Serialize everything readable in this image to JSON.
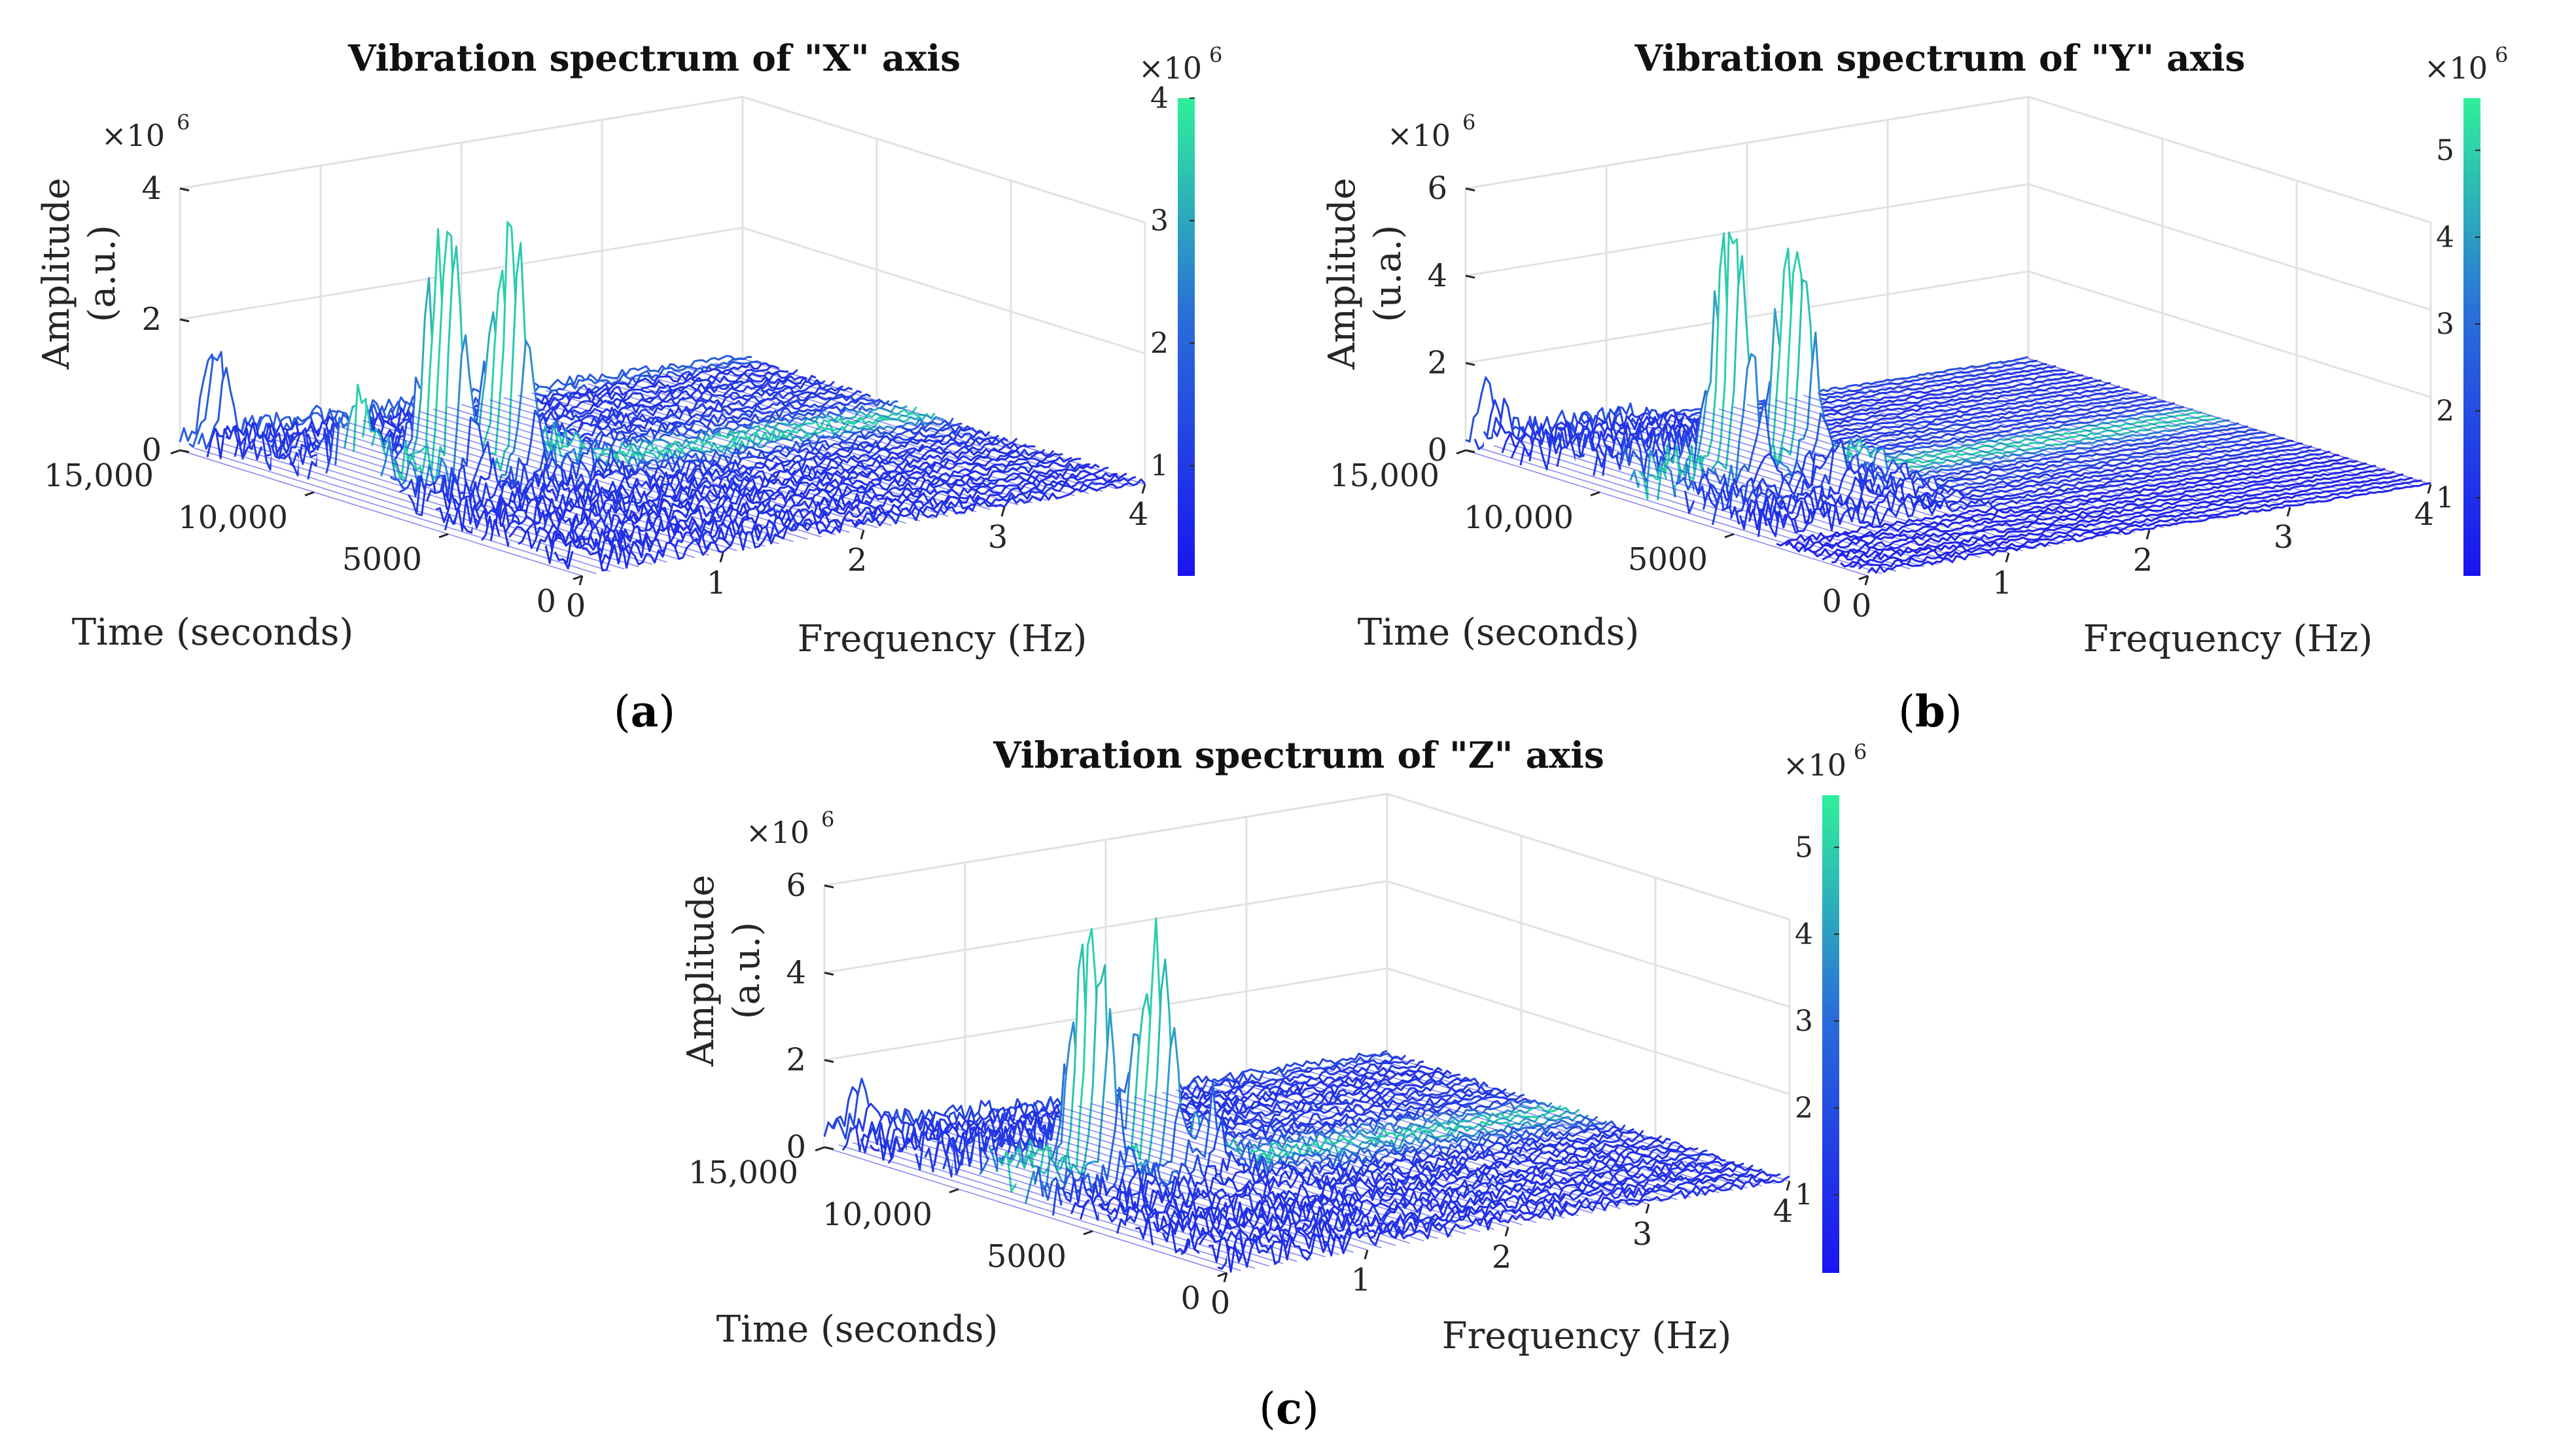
{
  "chart_data": [
    {
      "type": "surface3d",
      "id": "a",
      "title": "Vibration spectrum of \"X\" axis",
      "xlabel": "Frequency (Hz)",
      "ylabel": "Time (seconds)",
      "zlabel_line1": "Amplitude",
      "zlabel_line2": "(a.u.)",
      "z_multiplier": "×10",
      "z_multiplier_exp": "6",
      "x_ticks": [
        "0",
        "1",
        "2",
        "3",
        "4"
      ],
      "y_ticks": [
        "0",
        "5000",
        "10,000",
        "15,000"
      ],
      "z_ticks": [
        "0",
        "2",
        "4"
      ],
      "zlim": [
        0,
        4
      ],
      "colorbar_multiplier": "×10",
      "colorbar_multiplier_exp": "6",
      "colorbar_ticks": [
        "1",
        "2",
        "3",
        "4"
      ],
      "colorbar_range": [
        0.1,
        4.0
      ],
      "caption_open": "(",
      "caption_letter": "a",
      "caption_close": ")",
      "peaks": [
        {
          "freq": 0.6,
          "time": 8200,
          "amp": 4.0
        },
        {
          "freq": 1.05,
          "time": 8200,
          "amp": 3.7
        },
        {
          "freq": 0.2,
          "time": 15000,
          "amp": 1.4
        },
        {
          "freq": 0.05,
          "time": 8500,
          "amp": 1.1
        }
      ]
    },
    {
      "type": "surface3d",
      "id": "b",
      "title": "Vibration spectrum of \"Y\" axis",
      "xlabel": "Frequency (Hz)",
      "ylabel": "Time (seconds)",
      "zlabel_line1": "Amplitude",
      "zlabel_line2": "(u.a.)",
      "z_multiplier": "×10",
      "z_multiplier_exp": "6",
      "x_ticks": [
        "0",
        "1",
        "2",
        "3",
        "4"
      ],
      "y_ticks": [
        "0",
        "5000",
        "10,000",
        "15,000"
      ],
      "z_ticks": [
        "0",
        "2",
        "4",
        "6"
      ],
      "zlim": [
        0,
        6
      ],
      "colorbar_multiplier": "×10",
      "colorbar_multiplier_exp": "6",
      "colorbar_ticks": [
        "1",
        "2",
        "3",
        "4",
        "5"
      ],
      "colorbar_range": [
        0.1,
        5.6
      ],
      "caption_open": "(",
      "caption_letter": "b",
      "caption_close": ")",
      "peaks": [
        {
          "freq": 0.6,
          "time": 8200,
          "amp": 5.6
        },
        {
          "freq": 1.05,
          "time": 8200,
          "amp": 5.1
        },
        {
          "freq": 0.15,
          "time": 15000,
          "amp": 1.0
        },
        {
          "freq": 0.9,
          "time": 6000,
          "amp": 0.9
        }
      ]
    },
    {
      "type": "surface3d",
      "id": "c",
      "title": "Vibration spectrum of \"Z\" axis",
      "xlabel": "Frequency (Hz)",
      "ylabel": "Time (seconds)",
      "zlabel_line1": "Amplitude",
      "zlabel_line2": "(a.u.)",
      "z_multiplier": "×10",
      "z_multiplier_exp": "6",
      "x_ticks": [
        "0",
        "1",
        "2",
        "3",
        "4"
      ],
      "y_ticks": [
        "0",
        "5000",
        "10,000",
        "15,000"
      ],
      "z_ticks": [
        "0",
        "2",
        "4",
        "6"
      ],
      "zlim": [
        0,
        6
      ],
      "colorbar_multiplier": "×10",
      "colorbar_multiplier_exp": "6",
      "colorbar_ticks": [
        "1",
        "2",
        "3",
        "4",
        "5"
      ],
      "colorbar_range": [
        0.1,
        5.6
      ],
      "caption_open": "(",
      "caption_letter": "c",
      "caption_close": ")",
      "peaks": [
        {
          "freq": 0.6,
          "time": 8200,
          "amp": 5.6
        },
        {
          "freq": 1.05,
          "time": 8200,
          "amp": 5.2
        },
        {
          "freq": 0.2,
          "time": 15000,
          "amp": 1.0
        },
        {
          "freq": 1.2,
          "time": 7000,
          "amp": 1.4
        }
      ]
    }
  ],
  "colors": {
    "surface_low": "#1f1fe8",
    "surface_mid": "#2f7fd6",
    "surface_high": "#29e3a0",
    "grid": "#e2e2e2",
    "colorbar_low": "#1a14f0",
    "colorbar_high": "#2ff09a"
  }
}
